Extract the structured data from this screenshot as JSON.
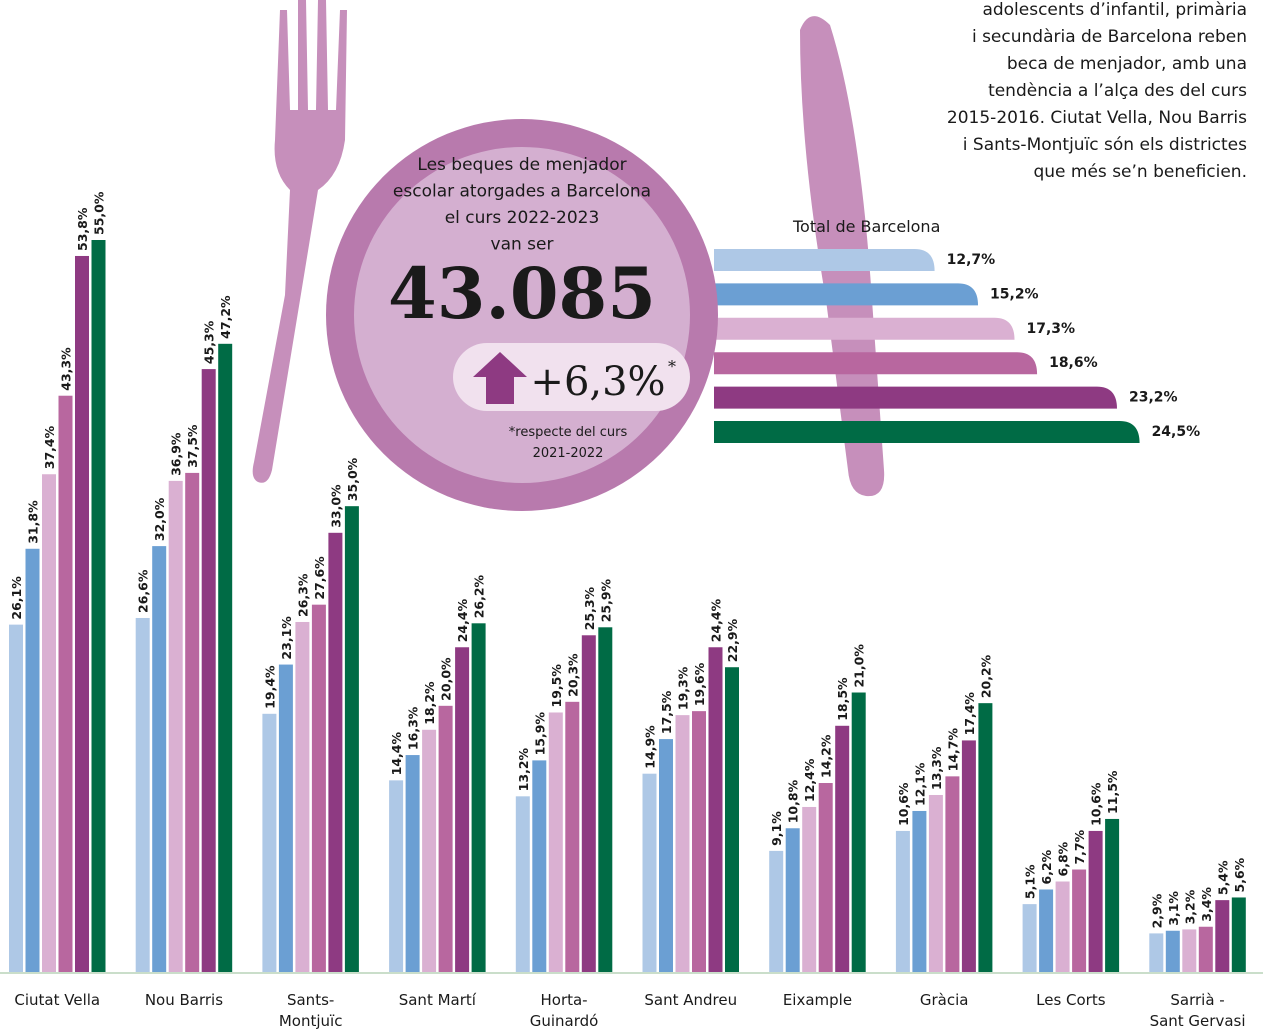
{
  "intro": [
    "adolescents d’infantil, primària",
    "i secundària de Barcelona reben",
    "beca de menjador, amb una",
    "tendència a l’alça des del curs",
    "2015-2016. Ciutat Vella, Nou Barris",
    "i Sants-Montjuïc són els districtes",
    "que més se’n beneficien."
  ],
  "plate": {
    "lines": [
      "Les beques de menjador",
      "escolar atorgades a Barcelona",
      "el curs 2022-2023",
      "van ser"
    ],
    "number": "43.085",
    "change": "+6,3%",
    "asterisk": "*",
    "note": [
      "*respecte del curs",
      "2021-2022"
    ]
  },
  "chart_data": [
    {
      "type": "bar",
      "categories": [
        "Ciutat Vella",
        "Nou Barris",
        "Sants-\nMontjuïc",
        "Sant Martí",
        "Horta-\nGuinardó",
        "Sant Andreu",
        "Eixample",
        "Gràcia",
        "Les Corts",
        "Sarrià -\nSant Gervasi"
      ],
      "series": [
        {
          "color": "#aec8e6",
          "values": [
            26.1,
            26.6,
            19.4,
            14.4,
            13.2,
            14.9,
            9.1,
            10.6,
            5.1,
            2.9
          ],
          "value_labels": [
            "26,1%",
            "26,6%",
            "19,4%",
            "14,4%",
            "13,2%",
            "14,9%",
            "9,1%",
            "10,6%",
            "5,1%",
            "2,9%"
          ]
        },
        {
          "color": "#6b9fd3",
          "values": [
            31.8,
            32.0,
            23.1,
            16.3,
            15.9,
            17.5,
            10.8,
            12.1,
            6.2,
            3.1
          ],
          "value_labels": [
            "31,8%",
            "32,0%",
            "23,1%",
            "16,3%",
            "15,9%",
            "17,5%",
            "10,8%",
            "12,1%",
            "6,2%",
            "3,1%"
          ]
        },
        {
          "color": "#dab0d2",
          "values": [
            37.4,
            36.9,
            26.3,
            18.2,
            19.5,
            19.3,
            12.4,
            13.3,
            6.8,
            3.2
          ],
          "value_labels": [
            "37,4%",
            "36,9%",
            "26,3%",
            "18,2%",
            "19,5%",
            "19,3%",
            "12,4%",
            "13,3%",
            "6,8%",
            "3,2%"
          ]
        },
        {
          "color": "#b8679f",
          "values": [
            43.3,
            37.5,
            27.6,
            20.0,
            20.3,
            19.6,
            14.2,
            14.7,
            7.7,
            3.4
          ],
          "value_labels": [
            "43,3%",
            "37,5%",
            "27,6%",
            "20,0%",
            "20,3%",
            "19,6%",
            "14,2%",
            "14,7%",
            "7,7%",
            "3,4%"
          ]
        },
        {
          "color": "#8e3a82",
          "values": [
            53.8,
            45.3,
            33.0,
            24.4,
            25.3,
            24.4,
            18.5,
            17.4,
            10.6,
            5.4
          ],
          "value_labels": [
            "53,8%",
            "45,3%",
            "33,0%",
            "24,4%",
            "25,3%",
            "24,4%",
            "18,5%",
            "17,4%",
            "10,6%",
            "5,4%"
          ]
        },
        {
          "color": "#006b45",
          "values": [
            55.0,
            47.2,
            35.0,
            26.2,
            25.9,
            22.9,
            21.0,
            20.2,
            11.5,
            5.6
          ],
          "value_labels": [
            "55,0%",
            "47,2%",
            "35,0%",
            "26,2%",
            "25,9%",
            "22,9%",
            "21,0%",
            "20,2%",
            "11,5%",
            "5,6%"
          ]
        }
      ]
    },
    {
      "type": "hbar",
      "title": "Total de Barcelona",
      "values": [
        12.7,
        15.2,
        17.3,
        18.6,
        23.2,
        24.5
      ],
      "value_labels": [
        "12,7%",
        "15,2%",
        "17,3%",
        "18,6%",
        "23,2%",
        "24,5%"
      ],
      "colors": [
        "#aec8e6",
        "#6b9fd3",
        "#dab0d2",
        "#b8679f",
        "#8e3a82",
        "#006b45"
      ]
    }
  ]
}
